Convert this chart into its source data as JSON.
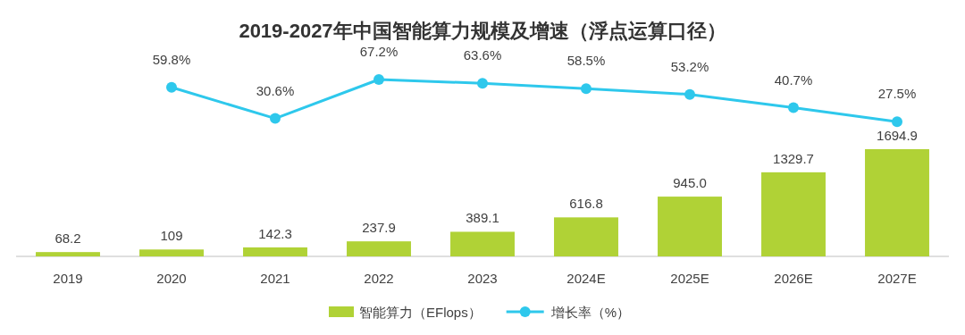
{
  "chart_data": [
    {
      "type": "bar",
      "categories": [
        "2019",
        "2020",
        "2021",
        "2022",
        "2023",
        "2024E",
        "2025E",
        "2026E",
        "2027E"
      ],
      "series": [
        {
          "name": "智能算力（EFlops）",
          "color": "#b0d236",
          "values": [
            68.2,
            109,
            142.3,
            237.9,
            389.1,
            616.8,
            945.0,
            1329.7,
            1694.9
          ],
          "value_labels": [
            "68.2",
            "109",
            "142.3",
            "237.9",
            "389.1",
            "616.8",
            "945.0",
            "1329.7",
            "1694.9"
          ]
        }
      ],
      "legend": "bottom",
      "grid": false
    },
    {
      "type": "line",
      "title": "2019-2027年中国智能算力规模及增速（浮点运算口径）",
      "categories": [
        null,
        null,
        null,
        null,
        null,
        null,
        null,
        null,
        null
      ],
      "series": [
        {
          "name": "增长率（%）",
          "color": "#2ec8ec",
          "values": [
            null,
            59.8,
            30.6,
            67.2,
            63.6,
            58.5,
            53.2,
            40.7,
            27.5
          ],
          "value_labels": [
            null,
            "59.8%",
            "30.6%",
            "67.2%",
            "63.6%",
            "58.5%",
            "53.2%",
            "40.7%",
            "27.5%"
          ]
        }
      ],
      "legend": "bottom",
      "marker": "circle",
      "line_style": "solid",
      "tick_labels": false
    }
  ]
}
